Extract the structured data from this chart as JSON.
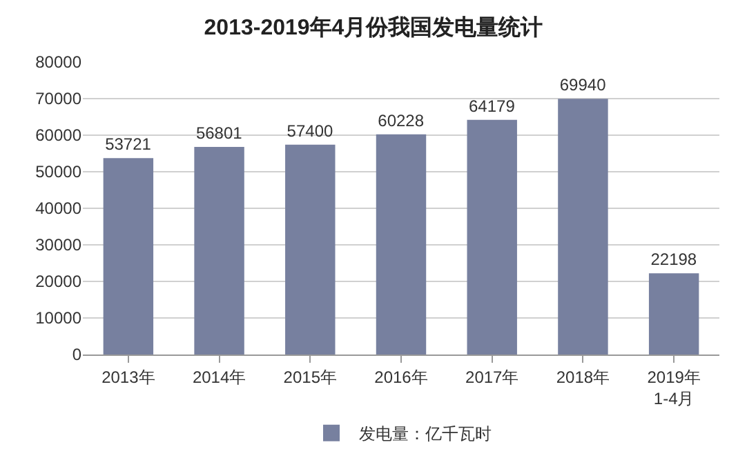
{
  "chart_data": {
    "type": "bar",
    "title": "2013-2019年4月份我国发电量统计",
    "categories": [
      "2013年",
      "2014年",
      "2015年",
      "2016年",
      "2017年",
      "2018年",
      "2019年\n1-4月"
    ],
    "series": [
      {
        "name": "发电量：亿千瓦时",
        "color": "#77809f",
        "values": [
          53721,
          56801,
          57400,
          60228,
          64179,
          69940,
          22198
        ]
      }
    ],
    "ylim": [
      0,
      80000
    ],
    "yticks": [
      0,
      10000,
      20000,
      30000,
      40000,
      50000,
      60000,
      70000,
      80000
    ],
    "grid": "y",
    "legend": "bottom",
    "data_labels": true
  }
}
